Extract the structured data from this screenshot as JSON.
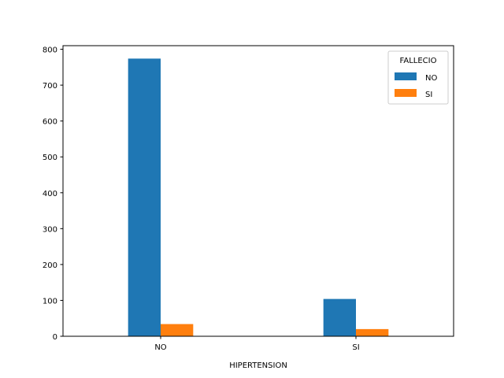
{
  "chart_data": {
    "type": "bar",
    "title": "",
    "xlabel": "HIPERTENSION",
    "ylabel": "",
    "categories": [
      "NO",
      "SI"
    ],
    "series": [
      {
        "name": "NO",
        "color": "#1f77b4",
        "values": [
          774,
          104
        ]
      },
      {
        "name": "SI",
        "color": "#ff7f0e",
        "values": [
          34,
          20
        ]
      }
    ],
    "ylim": [
      0,
      810
    ],
    "yticks": [
      0,
      100,
      200,
      300,
      400,
      500,
      600,
      700,
      800
    ],
    "grid": false,
    "legend": {
      "title": "FALLECIO",
      "placement": "top-right"
    }
  }
}
